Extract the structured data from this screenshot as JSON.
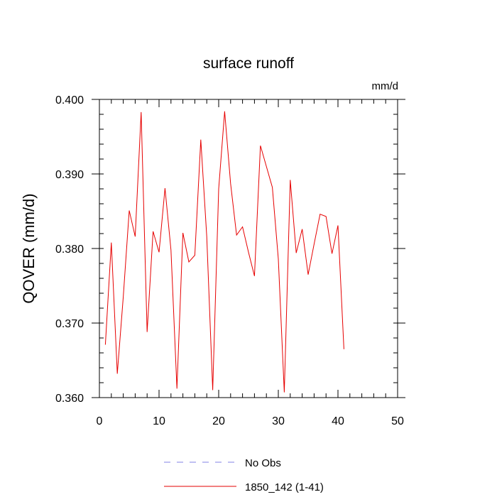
{
  "chart_data": {
    "type": "line",
    "title": "surface runoff",
    "units_label": "mm/d",
    "ylabel": "QOVER  (mm/d)",
    "xlabel": "",
    "xlim": [
      0,
      50
    ],
    "ylim": [
      0.36,
      0.4
    ],
    "x_ticks": [
      0,
      10,
      20,
      30,
      40,
      50
    ],
    "x_tick_labels": [
      "0",
      "10",
      "20",
      "30",
      "40",
      "50"
    ],
    "y_ticks": [
      0.36,
      0.37,
      0.38,
      0.39,
      0.4
    ],
    "y_tick_labels": [
      "0.360",
      "0.370",
      "0.380",
      "0.390",
      "0.400"
    ],
    "grid": false,
    "legend_position": "bottom",
    "legend": [
      {
        "name": "No Obs",
        "color": "#8080e6",
        "dashed": true
      },
      {
        "name": "1850_142 (1-41)",
        "color": "#e60000",
        "dashed": false
      }
    ],
    "series": [
      {
        "name": "1850_142 (1-41)",
        "color": "#e60000",
        "x": [
          1,
          2,
          3,
          4,
          5,
          6,
          7,
          8,
          9,
          10,
          11,
          12,
          13,
          14,
          15,
          16,
          17,
          18,
          19,
          20,
          21,
          22,
          23,
          24,
          25,
          26,
          27,
          28,
          29,
          30,
          31,
          32,
          33,
          34,
          35,
          36,
          37,
          38,
          39,
          40,
          41
        ],
        "y": [
          0.3671,
          0.3808,
          0.3632,
          0.3735,
          0.3851,
          0.3816,
          0.3983,
          0.3688,
          0.3823,
          0.3795,
          0.3881,
          0.3798,
          0.3612,
          0.3821,
          0.3782,
          0.3791,
          0.3946,
          0.3816,
          0.361,
          0.388,
          0.3984,
          0.3887,
          0.3818,
          0.3829,
          0.3795,
          0.3763,
          0.3938,
          0.391,
          0.3882,
          0.3786,
          0.3607,
          0.3892,
          0.3794,
          0.3826,
          0.3765,
          0.3806,
          0.3846,
          0.3843,
          0.3793,
          0.3831,
          0.3665
        ]
      }
    ]
  }
}
